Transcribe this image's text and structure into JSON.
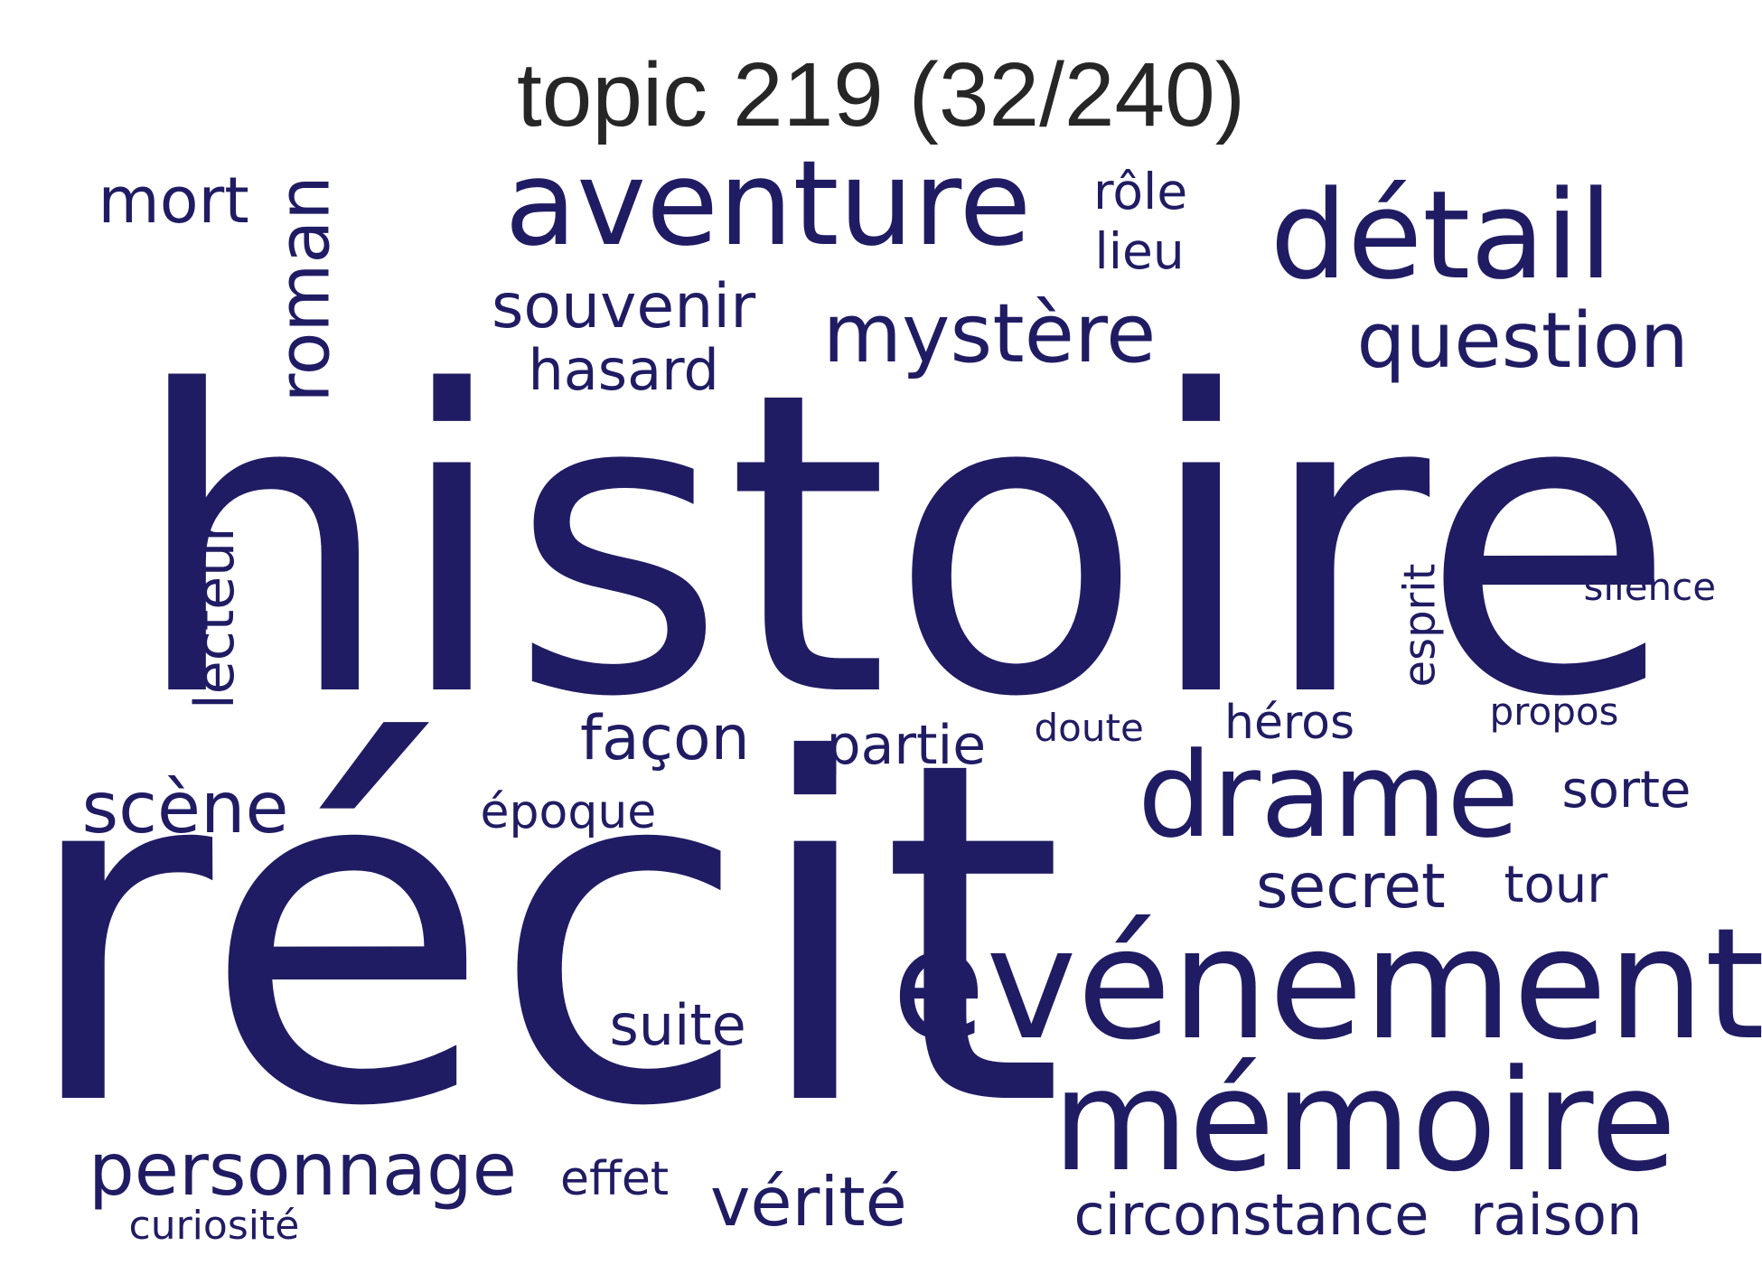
{
  "title": "topic 219 (32/240)",
  "word_color": "#201c63",
  "words": [
    {
      "text": "histoire"
    },
    {
      "text": "récit"
    },
    {
      "text": "événement"
    },
    {
      "text": "mémoire"
    },
    {
      "text": "aventure"
    },
    {
      "text": "détail"
    },
    {
      "text": "drame"
    },
    {
      "text": "mystère"
    },
    {
      "text": "question"
    },
    {
      "text": "roman"
    },
    {
      "text": "personnage"
    },
    {
      "text": "circonstance"
    },
    {
      "text": "vérité"
    },
    {
      "text": "scène"
    },
    {
      "text": "souvenir"
    },
    {
      "text": "mort"
    },
    {
      "text": "secret"
    },
    {
      "text": "lecteur"
    },
    {
      "text": "façon"
    },
    {
      "text": "partie"
    },
    {
      "text": "raison"
    },
    {
      "text": "rôle"
    },
    {
      "text": "lieu"
    },
    {
      "text": "hasard"
    },
    {
      "text": "suite"
    },
    {
      "text": "héros"
    },
    {
      "text": "esprit"
    },
    {
      "text": "sorte"
    },
    {
      "text": "tour"
    },
    {
      "text": "époque"
    },
    {
      "text": "effet"
    },
    {
      "text": "silence"
    },
    {
      "text": "propos"
    },
    {
      "text": "doute"
    },
    {
      "text": "curiosité"
    }
  ]
}
